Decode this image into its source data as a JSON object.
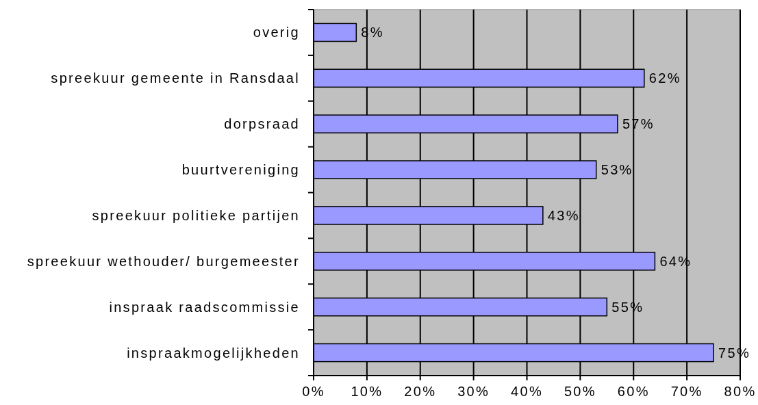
{
  "chart_data": {
    "type": "bar",
    "orientation": "horizontal",
    "categories": [
      "overig",
      "spreekuur gemeente in Ransdaal",
      "dorpsraad",
      "buurtvereniging",
      "spreekuur politieke partijen",
      "spreekuur wethouder/ burgemeester",
      "inspraak raadscommissie",
      "inspraakmogelijkheden"
    ],
    "values": [
      8,
      62,
      57,
      53,
      43,
      64,
      55,
      75
    ],
    "value_labels": [
      "8%",
      "62%",
      "57%",
      "53%",
      "43%",
      "64%",
      "55%",
      "75%"
    ],
    "color": "#9999ff",
    "xlim": [
      0,
      80
    ],
    "xticks": [
      {
        "value": 0,
        "label": "0%"
      },
      {
        "value": 10,
        "label": "10%"
      },
      {
        "value": 20,
        "label": "20%"
      },
      {
        "value": 30,
        "label": "30%"
      },
      {
        "value": 40,
        "label": "40%"
      },
      {
        "value": 50,
        "label": "50%"
      },
      {
        "value": 60,
        "label": "60%"
      },
      {
        "value": 70,
        "label": "70%"
      },
      {
        "value": 80,
        "label": "80%"
      }
    ],
    "grid": "x"
  }
}
